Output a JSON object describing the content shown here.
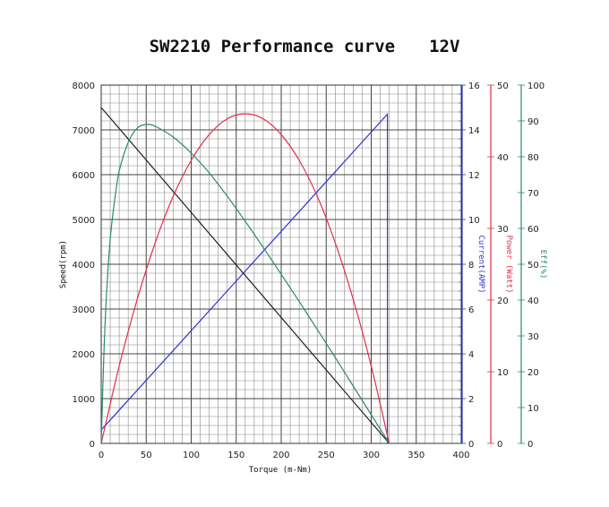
{
  "chart_data": {
    "type": "line",
    "title": "SW2210 Performance curve",
    "title_voltage": "12V",
    "xlabel": "Torque (m-Nm)",
    "xlim": [
      0,
      400
    ],
    "xticks": [
      0,
      50,
      100,
      150,
      200,
      250,
      300,
      350,
      400
    ],
    "grid": true,
    "axes": [
      {
        "id": "speed",
        "label": "Speed(rpm)",
        "side": "left",
        "ylim": [
          0,
          8000
        ],
        "ticks": [
          0,
          1000,
          2000,
          3000,
          4000,
          5000,
          6000,
          7000,
          8000
        ],
        "color": "#222222"
      },
      {
        "id": "current",
        "label": "Current(AMP)",
        "side": "right",
        "ylim": [
          0,
          16
        ],
        "ticks": [
          0,
          2,
          4,
          6,
          8,
          10,
          12,
          14,
          16
        ],
        "color": "#3333cc"
      },
      {
        "id": "power",
        "label": "Power (Watt)",
        "side": "right",
        "ylim": [
          0,
          50
        ],
        "ticks": [
          0,
          10,
          20,
          30,
          40,
          50
        ],
        "color": "#e0304a"
      },
      {
        "id": "eff",
        "label": "Eff(%)",
        "side": "right",
        "ylim": [
          0,
          100
        ],
        "ticks": [
          0,
          10,
          20,
          30,
          40,
          50,
          60,
          70,
          80,
          90,
          100
        ],
        "color": "#2a8a6a"
      }
    ],
    "series": [
      {
        "axis": "speed",
        "color": "#222222",
        "points": [
          [
            0,
            7500
          ],
          [
            320,
            0
          ]
        ]
      },
      {
        "axis": "current",
        "color": "#3333cc",
        "points": [
          [
            0,
            0.6
          ],
          [
            318,
            14.7
          ],
          [
            318,
            0
          ]
        ]
      },
      {
        "axis": "power",
        "color": "#e0304a",
        "points": [
          [
            0,
            0
          ],
          [
            20,
            10.8
          ],
          [
            40,
            20.1
          ],
          [
            60,
            28.0
          ],
          [
            80,
            34.5
          ],
          [
            100,
            39.5
          ],
          [
            120,
            43.1
          ],
          [
            140,
            45.3
          ],
          [
            160,
            46.0
          ],
          [
            180,
            45.3
          ],
          [
            200,
            43.1
          ],
          [
            220,
            39.5
          ],
          [
            240,
            34.5
          ],
          [
            260,
            28.0
          ],
          [
            280,
            20.1
          ],
          [
            300,
            10.8
          ],
          [
            320,
            0
          ]
        ]
      },
      {
        "axis": "eff",
        "color": "#2a8a6a",
        "points": [
          [
            0,
            0
          ],
          [
            3,
            25
          ],
          [
            6,
            42
          ],
          [
            10,
            57
          ],
          [
            15,
            68
          ],
          [
            20,
            76
          ],
          [
            30,
            84
          ],
          [
            40,
            88
          ],
          [
            50,
            89
          ],
          [
            60,
            88.5
          ],
          [
            80,
            85.5
          ],
          [
            100,
            81
          ],
          [
            120,
            75.5
          ],
          [
            140,
            69
          ],
          [
            160,
            62
          ],
          [
            180,
            54.7
          ],
          [
            200,
            47.2
          ],
          [
            220,
            39.6
          ],
          [
            240,
            31.8
          ],
          [
            260,
            24
          ],
          [
            280,
            16
          ],
          [
            300,
            8
          ],
          [
            320,
            0
          ]
        ]
      }
    ]
  }
}
